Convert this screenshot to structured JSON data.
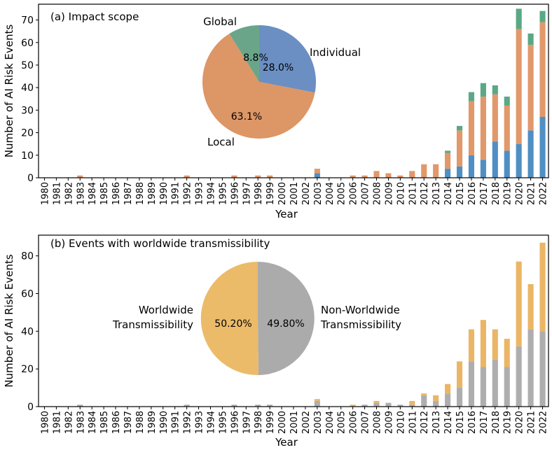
{
  "chart_data": [
    {
      "type": "bar",
      "stacked": true,
      "title": "(a) Impact scope",
      "xlabel": "Year",
      "ylabel": "Number of AI Risk Events",
      "ylim": [
        0,
        77
      ],
      "yticks": [
        0,
        10,
        20,
        30,
        40,
        50,
        60,
        70
      ],
      "categories": [
        "1980",
        "1981",
        "1982",
        "1983",
        "1984",
        "1985",
        "1986",
        "1987",
        "1988",
        "1989",
        "1990",
        "1991",
        "1992",
        "1993",
        "1994",
        "1995",
        "1996",
        "1997",
        "1998",
        "1999",
        "2000",
        "2001",
        "2002",
        "2003",
        "2004",
        "2005",
        "2006",
        "2007",
        "2008",
        "2009",
        "2010",
        "2011",
        "2012",
        "2013",
        "2014",
        "2015",
        "2016",
        "2017",
        "2018",
        "2019",
        "2020",
        "2021",
        "2022"
      ],
      "series": [
        {
          "name": "Individual",
          "color": "#4f8fc4",
          "values": [
            0,
            0,
            0,
            0,
            0,
            0,
            0,
            0,
            0,
            0,
            0,
            0,
            0,
            0,
            0,
            0,
            0,
            0,
            0,
            0,
            0,
            0,
            0,
            2,
            0,
            0,
            0,
            0,
            0,
            0,
            0,
            0,
            0,
            0,
            4,
            5,
            10,
            8,
            16,
            12,
            15,
            21,
            27
          ]
        },
        {
          "name": "Local",
          "color": "#e1986a",
          "values": [
            0,
            0,
            0,
            1,
            0,
            0,
            0,
            0,
            0,
            0,
            0,
            0,
            1,
            0,
            0,
            0,
            1,
            0,
            1,
            1,
            0,
            0,
            0,
            2,
            0,
            0,
            1,
            1,
            3,
            2,
            1,
            3,
            6,
            6,
            7,
            16,
            24,
            28,
            21,
            20,
            51,
            38,
            42
          ]
        },
        {
          "name": "Global",
          "color": "#5aa886",
          "values": [
            0,
            0,
            0,
            0,
            0,
            0,
            0,
            0,
            0,
            0,
            0,
            0,
            0,
            0,
            0,
            0,
            0,
            0,
            0,
            0,
            0,
            0,
            0,
            0,
            0,
            0,
            0,
            0,
            0,
            0,
            0,
            0,
            0,
            0,
            1,
            2,
            4,
            6,
            4,
            4,
            9,
            5,
            5
          ]
        }
      ],
      "pie": {
        "slices": [
          {
            "label": "Individual",
            "value": 28.0,
            "pct_text": "28.0%",
            "color": "#6b8fc2"
          },
          {
            "label": "Local",
            "value": 63.1,
            "pct_text": "63.1%",
            "color": "#dd9666"
          },
          {
            "label": "Global",
            "value": 8.8,
            "pct_text": "8.8%",
            "color": "#6aa58a"
          }
        ]
      }
    },
    {
      "type": "bar",
      "stacked": true,
      "title": "(b)  Events with worldwide transmissibility",
      "xlabel": "Year",
      "ylabel": "Number of AI Risk Events",
      "ylim": [
        0,
        91
      ],
      "yticks": [
        0,
        20,
        40,
        60,
        80
      ],
      "categories": [
        "1980",
        "1981",
        "1982",
        "1983",
        "1984",
        "1985",
        "1986",
        "1987",
        "1988",
        "1989",
        "1990",
        "1991",
        "1992",
        "1993",
        "1994",
        "1995",
        "1996",
        "1997",
        "1998",
        "1999",
        "2000",
        "2001",
        "2002",
        "2003",
        "2004",
        "2005",
        "2006",
        "2007",
        "2008",
        "2009",
        "2010",
        "2011",
        "2012",
        "2013",
        "2014",
        "2015",
        "2016",
        "2017",
        "2018",
        "2019",
        "2020",
        "2021",
        "2022"
      ],
      "series": [
        {
          "name": "Non-Worldwide Transmissibility",
          "color": "#aeaeae",
          "values": [
            0,
            0,
            0,
            1,
            0,
            0,
            0,
            0,
            0,
            0,
            0,
            0,
            1,
            0,
            0,
            0,
            1,
            0,
            1,
            1,
            0,
            0,
            0,
            3,
            0,
            0,
            0,
            1,
            2,
            2,
            1,
            1,
            6,
            3,
            7,
            10,
            24,
            21,
            25,
            21,
            32,
            41,
            40
          ]
        },
        {
          "name": "Worldwide Transmissibility",
          "color": "#eab666",
          "values": [
            0,
            0,
            0,
            0,
            0,
            0,
            0,
            0,
            0,
            0,
            0,
            0,
            0,
            0,
            0,
            0,
            0,
            0,
            0,
            0,
            0,
            0,
            0,
            1,
            0,
            0,
            1,
            0,
            1,
            0,
            0,
            2,
            1,
            3,
            5,
            14,
            17,
            25,
            16,
            15,
            45,
            24,
            47
          ]
        }
      ],
      "pie": {
        "slices": [
          {
            "label": "Non-Worldwide\nTransmissibility",
            "value": 49.8,
            "pct_text": "49.80%",
            "color": "#ababab"
          },
          {
            "label": "Worldwide\nTransmissibility",
            "value": 50.2,
            "pct_text": "50.20%",
            "color": "#ebbb6a"
          }
        ]
      }
    }
  ]
}
